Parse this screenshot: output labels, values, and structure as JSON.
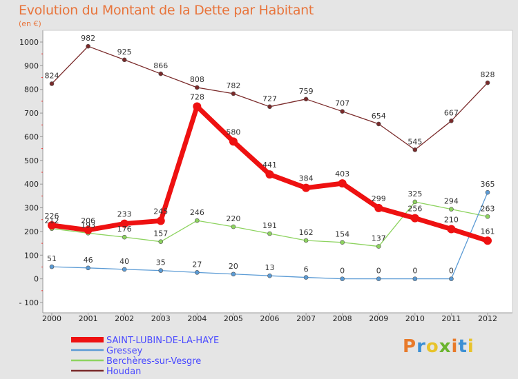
{
  "brand": {
    "logo_text": "Proxiti",
    "logo_colors": [
      "#e87a2a",
      "#3b8fd4",
      "#e8c32a",
      "#6ab42e"
    ]
  },
  "chart_data": {
    "type": "line",
    "title": "Evolution du Montant de la Dette par Habitant",
    "subtitle": "(en €)",
    "xlabel": "",
    "ylabel": "",
    "x": [
      "2000",
      "2001",
      "2002",
      "2003",
      "2004",
      "2005",
      "2006",
      "2007",
      "2008",
      "2009",
      "2010",
      "2011",
      "2012"
    ],
    "ylim": [
      -100,
      1000
    ],
    "yticks": [
      -100,
      0,
      100,
      200,
      300,
      400,
      500,
      600,
      700,
      800,
      900,
      1000
    ],
    "grid": false,
    "legend_position": "bottom-left",
    "series": [
      {
        "name": "SAINT-LUBIN-DE-LA-HAYE",
        "color": "#ee1111",
        "width": 7,
        "values": [
          226,
          206,
          233,
          245,
          728,
          580,
          441,
          384,
          403,
          299,
          256,
          210,
          161
        ],
        "labels": [
          "226",
          "206",
          "233",
          "245",
          "728",
          "580",
          "441",
          "384",
          "403",
          "299",
          "256",
          "210",
          "161"
        ]
      },
      {
        "name": "Gressey",
        "color": "#5b9bd5",
        "width": 1.3,
        "values": [
          51,
          46,
          40,
          35,
          27,
          20,
          13,
          6,
          0,
          0,
          0,
          0,
          365
        ],
        "labels": [
          "51",
          "46",
          "40",
          "35",
          "27",
          "20",
          "13",
          "6",
          "0",
          "0",
          "0",
          "0",
          "365"
        ]
      },
      {
        "name": "Berchères-sur-Vesgre",
        "color": "#8dd35f",
        "width": 1.3,
        "values": [
          212,
          193,
          176,
          157,
          246,
          220,
          191,
          162,
          154,
          137,
          325,
          294,
          263
        ],
        "labels": [
          "212",
          "193",
          "176",
          "157",
          "246",
          "220",
          "191",
          "162",
          "154",
          "137",
          "325",
          "294",
          "263"
        ]
      },
      {
        "name": "Houdan",
        "color": "#7a2a2a",
        "width": 1.3,
        "values": [
          824,
          982,
          925,
          866,
          808,
          782,
          727,
          759,
          707,
          654,
          545,
          667,
          828
        ],
        "labels": [
          "824",
          "982",
          "925",
          "866",
          "808",
          "782",
          "727",
          "759",
          "707",
          "654",
          "545",
          "667",
          "828"
        ]
      }
    ]
  }
}
